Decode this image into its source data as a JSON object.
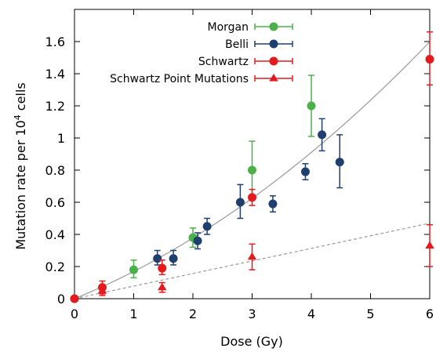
{
  "chart_data": {
    "type": "scatter",
    "xlabel": "Dose (Gy)",
    "ylabel_parts": [
      "Mutation rate per 10",
      "4",
      " cells"
    ],
    "xlim": [
      0,
      6
    ],
    "ylim": [
      0,
      1.8
    ],
    "xticks": [
      "0",
      "1",
      "2",
      "3",
      "4",
      "5",
      "6"
    ],
    "yticks": [
      "0",
      "0.2",
      "0.4",
      "0.6",
      "0.8",
      "1",
      "1.2",
      "1.4",
      "1.6"
    ],
    "grid": false,
    "legend_position": "top-center",
    "series": [
      {
        "name": "Morgan",
        "color": "#4cb04a",
        "marker": "circle",
        "points": [
          {
            "x": 0,
            "y": 0.0,
            "lo": 0.0,
            "hi": 0.0
          },
          {
            "x": 1,
            "y": 0.18,
            "lo": 0.13,
            "hi": 0.24
          },
          {
            "x": 2,
            "y": 0.38,
            "lo": 0.32,
            "hi": 0.44
          },
          {
            "x": 3,
            "y": 0.8,
            "lo": 0.62,
            "hi": 0.98
          },
          {
            "x": 4,
            "y": 1.2,
            "lo": 1.01,
            "hi": 1.39
          }
        ]
      },
      {
        "name": "Belli",
        "color": "#1f3f6e",
        "marker": "circle",
        "points": [
          {
            "x": 1.4,
            "y": 0.25,
            "lo": 0.21,
            "hi": 0.3
          },
          {
            "x": 1.67,
            "y": 0.25,
            "lo": 0.21,
            "hi": 0.3
          },
          {
            "x": 2.08,
            "y": 0.36,
            "lo": 0.31,
            "hi": 0.41
          },
          {
            "x": 2.24,
            "y": 0.45,
            "lo": 0.4,
            "hi": 0.5
          },
          {
            "x": 2.8,
            "y": 0.6,
            "lo": 0.5,
            "hi": 0.71
          },
          {
            "x": 3.35,
            "y": 0.59,
            "lo": 0.54,
            "hi": 0.64
          },
          {
            "x": 3.9,
            "y": 0.79,
            "lo": 0.74,
            "hi": 0.84
          },
          {
            "x": 4.18,
            "y": 1.02,
            "lo": 0.92,
            "hi": 1.12
          },
          {
            "x": 4.48,
            "y": 0.85,
            "lo": 0.69,
            "hi": 1.02
          }
        ]
      },
      {
        "name": "Schwartz",
        "color": "#e41a1c",
        "marker": "circle",
        "points": [
          {
            "x": 0,
            "y": 0.0,
            "lo": 0.0,
            "hi": 0.0
          },
          {
            "x": 0.47,
            "y": 0.07,
            "lo": 0.03,
            "hi": 0.11
          },
          {
            "x": 1.48,
            "y": 0.19,
            "lo": 0.15,
            "hi": 0.24
          },
          {
            "x": 3,
            "y": 0.63,
            "lo": 0.58,
            "hi": 0.68
          },
          {
            "x": 6,
            "y": 1.49,
            "lo": 1.33,
            "hi": 1.66
          }
        ]
      },
      {
        "name": "Schwartz Point Mutations",
        "color": "#e41a1c",
        "marker": "triangle",
        "points": [
          {
            "x": 0.47,
            "y": 0.05,
            "lo": 0.02,
            "hi": 0.08
          },
          {
            "x": 1.48,
            "y": 0.07,
            "lo": 0.04,
            "hi": 0.1
          },
          {
            "x": 3,
            "y": 0.26,
            "lo": 0.18,
            "hi": 0.34
          },
          {
            "x": 6,
            "y": 0.33,
            "lo": 0.2,
            "hi": 0.46
          }
        ]
      }
    ],
    "fit_curves": [
      {
        "style": "solid",
        "color": "#999999",
        "form": "a*x+b*x^2",
        "a": 0.15,
        "b": 0.0194
      },
      {
        "style": "dashed",
        "color": "#999999",
        "form": "a*x",
        "a": 0.0783
      }
    ]
  }
}
